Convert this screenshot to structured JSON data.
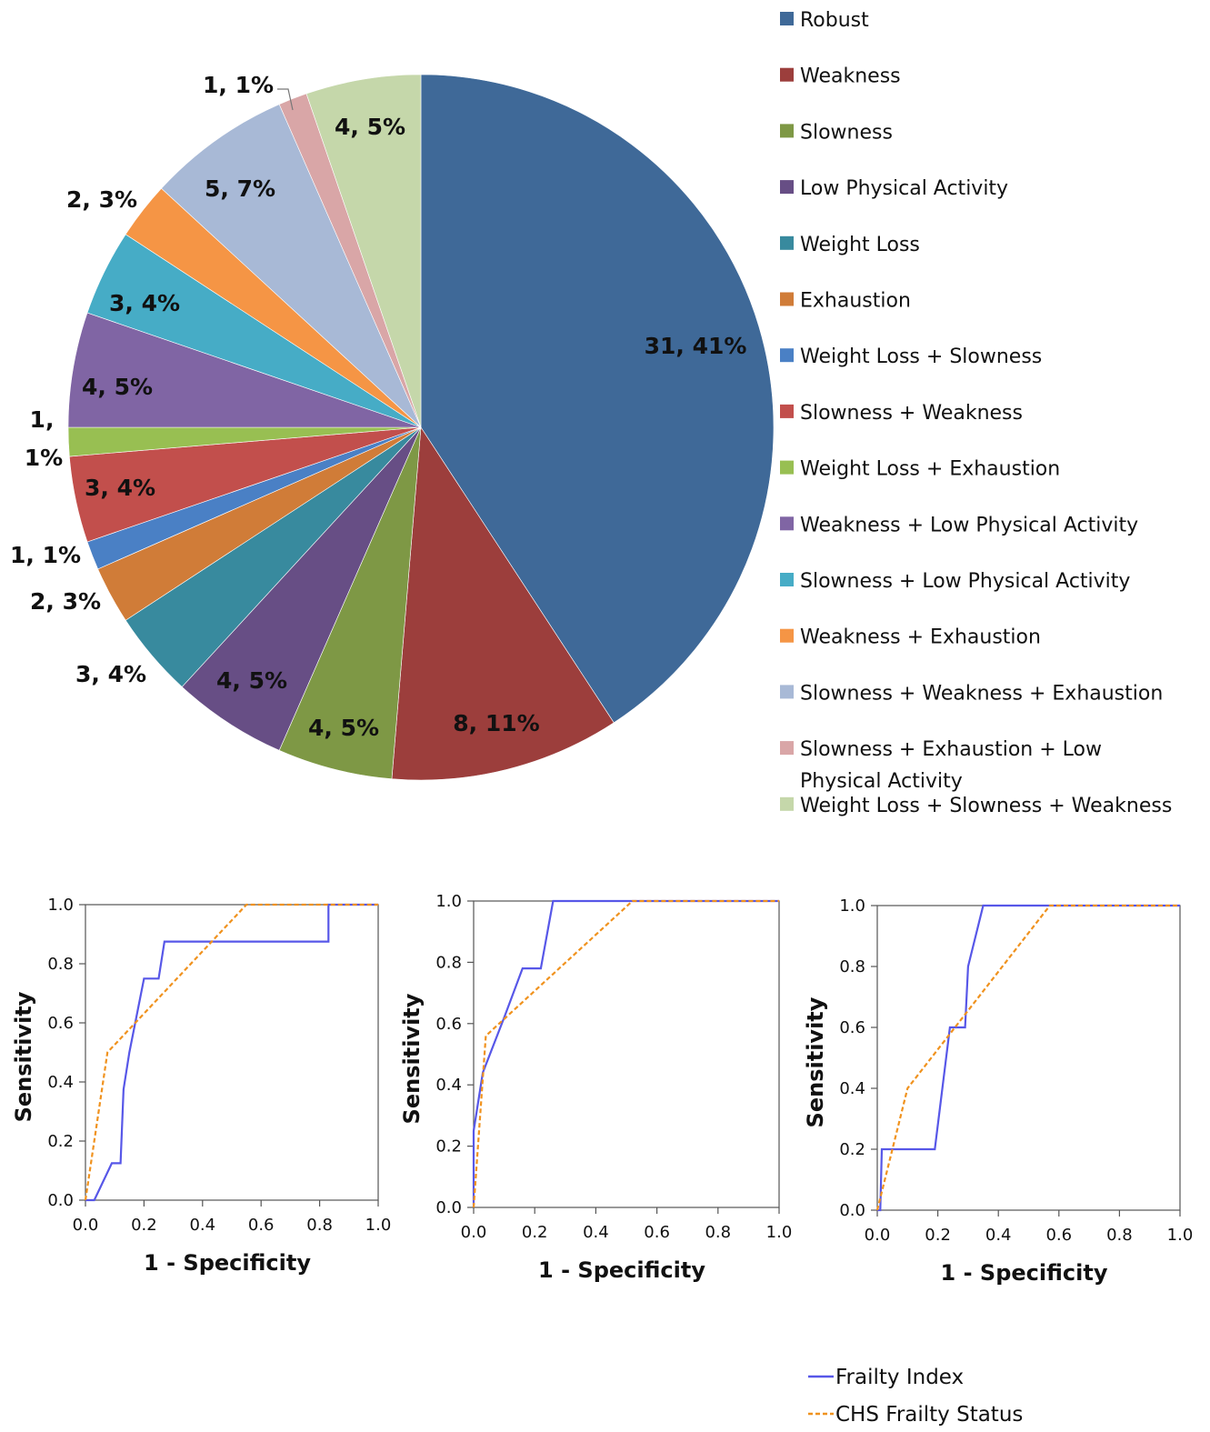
{
  "chart_data": [
    {
      "type": "pie",
      "title": "",
      "label_format": "{value}, {percent}%",
      "slices": [
        {
          "name": "Robust",
          "value": 31,
          "percent": 41,
          "color": "#3F6998"
        },
        {
          "name": "Weakness",
          "value": 8,
          "percent": 11,
          "color": "#9C3E3C"
        },
        {
          "name": "Slowness",
          "value": 4,
          "percent": 5,
          "color": "#7E9845"
        },
        {
          "name": "Low Physical Activity",
          "value": 4,
          "percent": 5,
          "color": "#674E85"
        },
        {
          "name": "Weight Loss",
          "value": 3,
          "percent": 4,
          "color": "#388A9E"
        },
        {
          "name": "Exhaustion",
          "value": 2,
          "percent": 3,
          "color": "#D07C38"
        },
        {
          "name": "Weight Loss + Slowness",
          "value": 1,
          "percent": 1,
          "color": "#4A80C5"
        },
        {
          "name": "Slowness + Weakness",
          "value": 3,
          "percent": 4,
          "color": "#C24F4C"
        },
        {
          "name": "Weight Loss + Exhaustion",
          "value": 1,
          "percent": 1,
          "color": "#98BF52"
        },
        {
          "name": "Weakness + Low Physical Activity",
          "value": 4,
          "percent": 5,
          "color": "#8065A4"
        },
        {
          "name": "Slowness + Low Physical Activity",
          "value": 3,
          "percent": 4,
          "color": "#46ACC6"
        },
        {
          "name": "Weakness + Exhaustion",
          "value": 2,
          "percent": 3,
          "color": "#F59545"
        },
        {
          "name": "Slowness + Weakness + Exhaustion",
          "value": 5,
          "percent": 7,
          "color": "#A8B9D6"
        },
        {
          "name": "Slowness + Exhaustion + Low Physical Activity",
          "value": 1,
          "percent": 1,
          "color": "#D9A6A7"
        },
        {
          "name": "Weight Loss + Slowness + Weakness",
          "value": 4,
          "percent": 5,
          "color": "#C5D7AA"
        }
      ],
      "legend": {
        "placement": "right"
      }
    },
    {
      "type": "line",
      "xlabel": "1 - Specificity",
      "ylabel": "Sensitivity",
      "xlim": [
        0,
        1
      ],
      "ylim": [
        0,
        1
      ],
      "ticks": [
        "0.0",
        "0.2",
        "0.4",
        "0.6",
        "0.8",
        "1.0"
      ],
      "series": [
        {
          "name": "Frailty Index",
          "color": "#5757E8",
          "style": "solid",
          "x": [
            0,
            0.03,
            0.09,
            0.12,
            0.13,
            0.15,
            0.2,
            0.25,
            0.27,
            0.83,
            0.83,
            1
          ],
          "y": [
            0,
            0,
            0.125,
            0.125,
            0.375,
            0.5,
            0.75,
            0.75,
            0.875,
            0.875,
            1,
            1
          ]
        },
        {
          "name": "CHS Frailty Status",
          "color": "#F0921E",
          "style": "dashed",
          "x": [
            0,
            0.075,
            0.55,
            1
          ],
          "y": [
            0,
            0.5,
            1,
            1
          ]
        }
      ]
    },
    {
      "type": "line",
      "xlabel": "1 - Specificity",
      "ylabel": "Sensitivity",
      "xlim": [
        0,
        1
      ],
      "ylim": [
        0,
        1
      ],
      "ticks": [
        "0.0",
        "0.2",
        "0.4",
        "0.6",
        "0.8",
        "1.0"
      ],
      "series": [
        {
          "name": "Frailty Index",
          "color": "#5757E8",
          "style": "solid",
          "x": [
            0,
            0,
            0.03,
            0.1,
            0.16,
            0.22,
            0.26,
            1
          ],
          "y": [
            0,
            0.25,
            0.44,
            0.62,
            0.78,
            0.78,
            1,
            1
          ]
        },
        {
          "name": "CHS Frailty Status",
          "color": "#F0921E",
          "style": "dashed",
          "x": [
            0,
            0.04,
            0.52,
            1
          ],
          "y": [
            0,
            0.56,
            1,
            1
          ]
        }
      ]
    },
    {
      "type": "line",
      "xlabel": "1 - Specificity",
      "ylabel": "Sensitivity",
      "xlim": [
        0,
        1
      ],
      "ylim": [
        0,
        1
      ],
      "ticks": [
        "0.0",
        "0.2",
        "0.4",
        "0.6",
        "0.8",
        "1.0"
      ],
      "series": [
        {
          "name": "Frailty Index",
          "color": "#5757E8",
          "style": "solid",
          "x": [
            0,
            0.01,
            0.015,
            0.19,
            0.24,
            0.29,
            0.3,
            0.35,
            1
          ],
          "y": [
            0,
            0,
            0.2,
            0.2,
            0.6,
            0.6,
            0.8,
            1,
            1
          ]
        },
        {
          "name": "CHS Frailty Status",
          "color": "#F0921E",
          "style": "dashed",
          "x": [
            0,
            0.1,
            0.57,
            1
          ],
          "y": [
            0,
            0.4,
            1,
            1
          ]
        }
      ]
    }
  ],
  "roc_legend": [
    {
      "label": "Frailty Index",
      "color": "#5757E8",
      "style": "solid"
    },
    {
      "label": "CHS Frailty Status",
      "color": "#F0921E",
      "style": "dashed"
    }
  ]
}
